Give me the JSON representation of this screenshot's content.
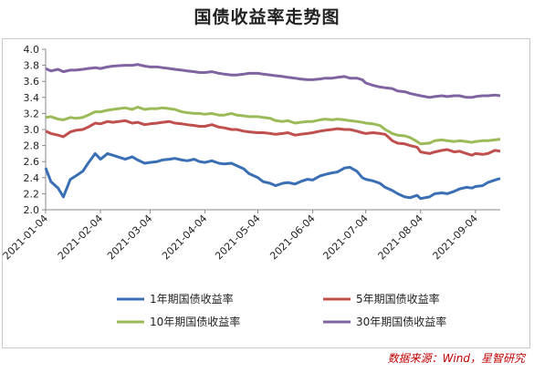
{
  "title": "国债收益率走势图",
  "source": "数据来源：Wind，星智研究",
  "chart_data": {
    "type": "line",
    "title": "国债收益率走势图",
    "ylim": [
      2.0,
      4.0
    ],
    "yticks": [
      "4.0",
      "3.8",
      "3.6",
      "3.4",
      "3.2",
      "3.0",
      "2.8",
      "2.6",
      "2.4",
      "2.2",
      "2.0"
    ],
    "xticks": [
      "2021-01-04",
      "2021-02-04",
      "2021-03-04",
      "2021-04-04",
      "2021-05-04",
      "2021-06-04",
      "2021-07-04",
      "2021-08-04",
      "2021-09-04"
    ],
    "x": [
      "2021-01-04",
      "2021-01-07",
      "2021-01-11",
      "2021-01-14",
      "2021-01-18",
      "2021-01-21",
      "2021-01-25",
      "2021-01-28",
      "2021-02-01",
      "2021-02-04",
      "2021-02-08",
      "2021-02-11",
      "2021-02-18",
      "2021-02-22",
      "2021-02-25",
      "2021-03-01",
      "2021-03-04",
      "2021-03-08",
      "2021-03-11",
      "2021-03-15",
      "2021-03-18",
      "2021-03-22",
      "2021-03-25",
      "2021-03-29",
      "2021-04-01",
      "2021-04-04",
      "2021-04-08",
      "2021-04-12",
      "2021-04-15",
      "2021-04-19",
      "2021-04-22",
      "2021-04-26",
      "2021-04-29",
      "2021-05-04",
      "2021-05-07",
      "2021-05-11",
      "2021-05-14",
      "2021-05-18",
      "2021-05-21",
      "2021-05-25",
      "2021-05-28",
      "2021-06-01",
      "2021-06-04",
      "2021-06-08",
      "2021-06-11",
      "2021-06-15",
      "2021-06-18",
      "2021-06-22",
      "2021-06-25",
      "2021-06-29",
      "2021-07-02",
      "2021-07-04",
      "2021-07-08",
      "2021-07-12",
      "2021-07-15",
      "2021-07-19",
      "2021-07-22",
      "2021-07-26",
      "2021-07-29",
      "2021-08-02",
      "2021-08-04",
      "2021-08-09",
      "2021-08-12",
      "2021-08-16",
      "2021-08-19",
      "2021-08-23",
      "2021-08-26",
      "2021-08-30",
      "2021-09-02",
      "2021-09-04",
      "2021-09-08",
      "2021-09-11",
      "2021-09-15",
      "2021-09-18"
    ],
    "series": [
      {
        "name": "1年期国债收益率",
        "color": "#3a6fb5",
        "values": [
          2.52,
          2.35,
          2.27,
          2.16,
          2.38,
          2.42,
          2.48,
          2.58,
          2.7,
          2.63,
          2.7,
          2.68,
          2.63,
          2.66,
          2.62,
          2.58,
          2.59,
          2.6,
          2.62,
          2.63,
          2.64,
          2.62,
          2.61,
          2.63,
          2.6,
          2.59,
          2.61,
          2.58,
          2.57,
          2.58,
          2.55,
          2.51,
          2.45,
          2.4,
          2.35,
          2.33,
          2.3,
          2.33,
          2.34,
          2.32,
          2.35,
          2.38,
          2.37,
          2.42,
          2.44,
          2.46,
          2.47,
          2.52,
          2.53,
          2.48,
          2.4,
          2.38,
          2.36,
          2.33,
          2.28,
          2.24,
          2.2,
          2.16,
          2.15,
          2.18,
          2.14,
          2.16,
          2.2,
          2.21,
          2.2,
          2.23,
          2.26,
          2.28,
          2.27,
          2.29,
          2.3,
          2.34,
          2.37,
          2.39
        ]
      },
      {
        "name": "5年期国债收益率",
        "color": "#c0504d",
        "values": [
          2.98,
          2.95,
          2.93,
          2.91,
          2.97,
          2.99,
          3.0,
          3.03,
          3.08,
          3.07,
          3.1,
          3.09,
          3.11,
          3.08,
          3.09,
          3.06,
          3.07,
          3.08,
          3.09,
          3.1,
          3.08,
          3.07,
          3.06,
          3.05,
          3.04,
          3.04,
          3.06,
          3.03,
          3.02,
          3.0,
          3.0,
          2.98,
          2.97,
          2.96,
          2.96,
          2.95,
          2.94,
          2.95,
          2.96,
          2.93,
          2.94,
          2.95,
          2.96,
          2.98,
          2.99,
          3.0,
          3.01,
          3.0,
          3.0,
          2.98,
          2.96,
          2.95,
          2.96,
          2.95,
          2.94,
          2.86,
          2.83,
          2.82,
          2.8,
          2.78,
          2.72,
          2.7,
          2.72,
          2.74,
          2.75,
          2.72,
          2.73,
          2.7,
          2.68,
          2.7,
          2.69,
          2.7,
          2.74,
          2.73
        ]
      },
      {
        "name": "10年期国债收益率",
        "color": "#9bbb59",
        "values": [
          3.15,
          3.16,
          3.13,
          3.12,
          3.15,
          3.14,
          3.15,
          3.18,
          3.22,
          3.22,
          3.24,
          3.25,
          3.27,
          3.25,
          3.28,
          3.25,
          3.26,
          3.26,
          3.27,
          3.26,
          3.25,
          3.22,
          3.21,
          3.2,
          3.2,
          3.19,
          3.2,
          3.18,
          3.18,
          3.2,
          3.18,
          3.17,
          3.16,
          3.16,
          3.15,
          3.14,
          3.11,
          3.1,
          3.11,
          3.08,
          3.09,
          3.1,
          3.1,
          3.12,
          3.13,
          3.12,
          3.13,
          3.12,
          3.11,
          3.1,
          3.09,
          3.08,
          3.07,
          3.05,
          3.0,
          2.95,
          2.93,
          2.92,
          2.9,
          2.85,
          2.82,
          2.83,
          2.86,
          2.87,
          2.86,
          2.85,
          2.86,
          2.85,
          2.84,
          2.85,
          2.86,
          2.86,
          2.87,
          2.88
        ]
      },
      {
        "name": "30年期国债收益率",
        "color": "#8064a2",
        "values": [
          3.76,
          3.73,
          3.75,
          3.72,
          3.74,
          3.74,
          3.75,
          3.76,
          3.77,
          3.76,
          3.78,
          3.79,
          3.8,
          3.8,
          3.81,
          3.79,
          3.78,
          3.78,
          3.77,
          3.76,
          3.75,
          3.74,
          3.73,
          3.72,
          3.71,
          3.71,
          3.72,
          3.7,
          3.69,
          3.68,
          3.68,
          3.69,
          3.7,
          3.7,
          3.69,
          3.68,
          3.67,
          3.66,
          3.65,
          3.64,
          3.63,
          3.62,
          3.62,
          3.63,
          3.64,
          3.64,
          3.65,
          3.66,
          3.64,
          3.64,
          3.62,
          3.58,
          3.55,
          3.53,
          3.52,
          3.51,
          3.48,
          3.47,
          3.45,
          3.43,
          3.42,
          3.4,
          3.41,
          3.42,
          3.41,
          3.42,
          3.42,
          3.4,
          3.4,
          3.41,
          3.42,
          3.42,
          3.43,
          3.42
        ]
      }
    ],
    "legend_position": "bottom"
  }
}
